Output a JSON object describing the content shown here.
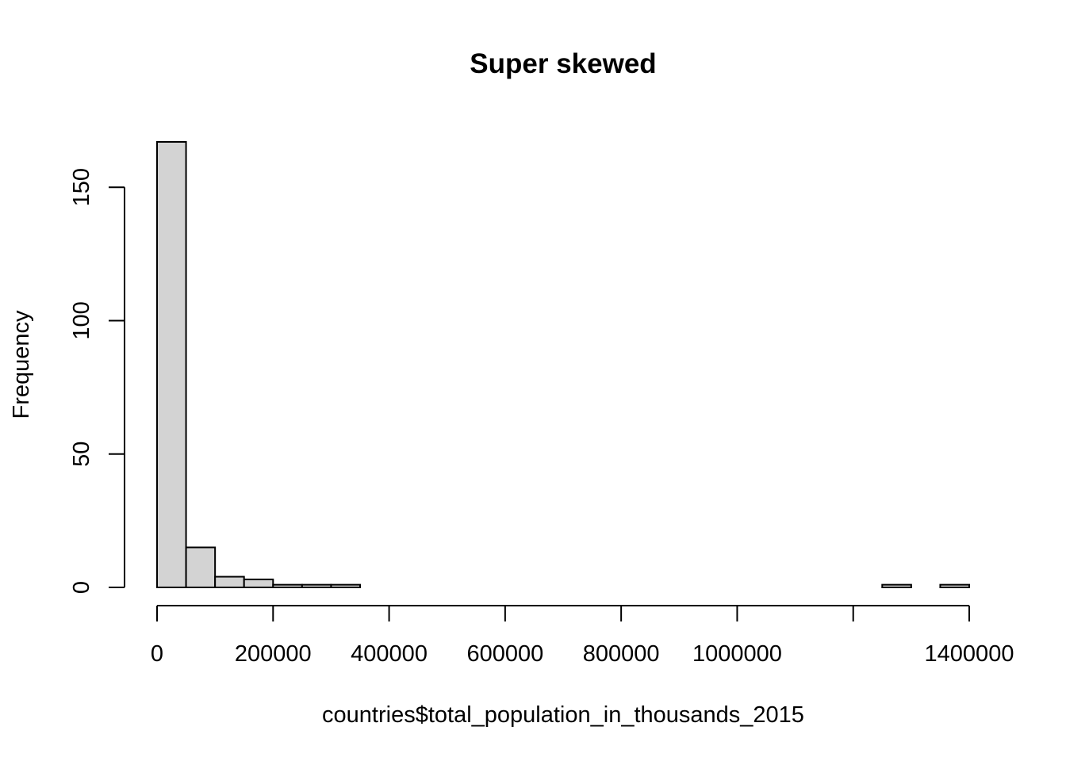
{
  "chart_data": {
    "type": "bar",
    "subtype": "histogram",
    "title": "Super skewed",
    "xlabel": "countries$total_population_in_thousands_2015",
    "ylabel": "Frequency",
    "bin_width": 50000,
    "bins": [
      {
        "start": 0,
        "end": 50000,
        "count": 167
      },
      {
        "start": 50000,
        "end": 100000,
        "count": 15
      },
      {
        "start": 100000,
        "end": 150000,
        "count": 4
      },
      {
        "start": 150000,
        "end": 200000,
        "count": 3
      },
      {
        "start": 200000,
        "end": 250000,
        "count": 1
      },
      {
        "start": 250000,
        "end": 300000,
        "count": 1
      },
      {
        "start": 300000,
        "end": 350000,
        "count": 1
      },
      {
        "start": 350000,
        "end": 400000,
        "count": 0
      },
      {
        "start": 400000,
        "end": 450000,
        "count": 0
      },
      {
        "start": 450000,
        "end": 500000,
        "count": 0
      },
      {
        "start": 500000,
        "end": 550000,
        "count": 0
      },
      {
        "start": 550000,
        "end": 600000,
        "count": 0
      },
      {
        "start": 600000,
        "end": 650000,
        "count": 0
      },
      {
        "start": 650000,
        "end": 700000,
        "count": 0
      },
      {
        "start": 700000,
        "end": 750000,
        "count": 0
      },
      {
        "start": 750000,
        "end": 800000,
        "count": 0
      },
      {
        "start": 800000,
        "end": 850000,
        "count": 0
      },
      {
        "start": 850000,
        "end": 900000,
        "count": 0
      },
      {
        "start": 900000,
        "end": 950000,
        "count": 0
      },
      {
        "start": 950000,
        "end": 1000000,
        "count": 0
      },
      {
        "start": 1000000,
        "end": 1050000,
        "count": 0
      },
      {
        "start": 1050000,
        "end": 1100000,
        "count": 0
      },
      {
        "start": 1100000,
        "end": 1150000,
        "count": 0
      },
      {
        "start": 1150000,
        "end": 1200000,
        "count": 0
      },
      {
        "start": 1200000,
        "end": 1250000,
        "count": 0
      },
      {
        "start": 1250000,
        "end": 1300000,
        "count": 1
      },
      {
        "start": 1300000,
        "end": 1350000,
        "count": 0
      },
      {
        "start": 1350000,
        "end": 1400000,
        "count": 1
      }
    ],
    "xlim": [
      0,
      1400000
    ],
    "ylim": [
      0,
      167
    ],
    "x_ticks": [
      0,
      200000,
      400000,
      600000,
      800000,
      1000000,
      1200000,
      1400000
    ],
    "x_tick_labels": [
      "0",
      "200000",
      "400000",
      "600000",
      "800000",
      "1000000",
      "",
      "1400000"
    ],
    "y_ticks": [
      0,
      50,
      100,
      150
    ],
    "y_tick_labels": [
      "0",
      "50",
      "100",
      "150"
    ],
    "bar_fill": "#d3d3d3",
    "bar_stroke": "#000000",
    "grid": false,
    "legend": "none"
  }
}
